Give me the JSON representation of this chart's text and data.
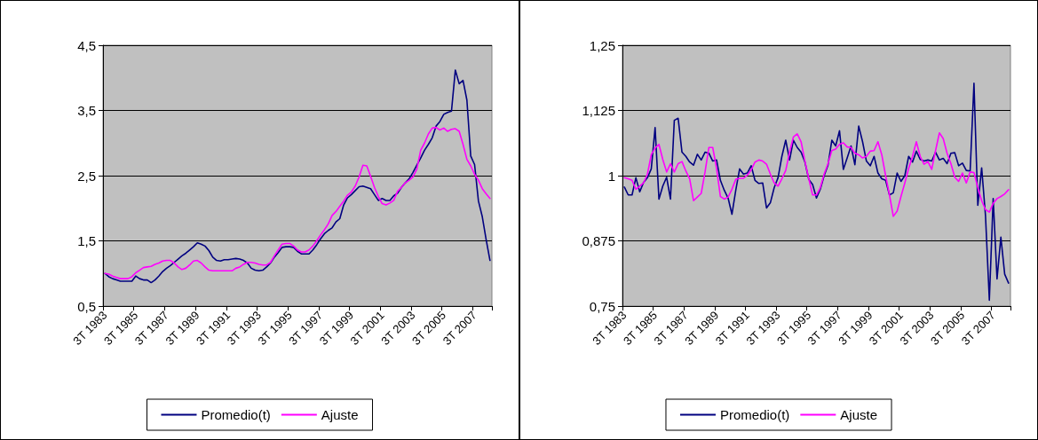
{
  "chart_data": [
    {
      "type": "line",
      "categories": [
        "3T 1983",
        null,
        null,
        null,
        null,
        null,
        null,
        null,
        "3T 1985",
        null,
        null,
        null,
        null,
        null,
        null,
        null,
        "3T 1987",
        null,
        null,
        null,
        null,
        null,
        null,
        null,
        "3T 1989",
        null,
        null,
        null,
        null,
        null,
        null,
        null,
        "3T 1991",
        null,
        null,
        null,
        null,
        null,
        null,
        null,
        "3T 1993",
        null,
        null,
        null,
        null,
        null,
        null,
        null,
        "3T 1995",
        null,
        null,
        null,
        null,
        null,
        null,
        null,
        "3T 1997",
        null,
        null,
        null,
        null,
        null,
        null,
        null,
        "3T 1999",
        null,
        null,
        null,
        null,
        null,
        null,
        null,
        "3T 2001",
        null,
        null,
        null,
        null,
        null,
        null,
        null,
        "3T 2003",
        null,
        null,
        null,
        null,
        null,
        null,
        null,
        "3T 2005",
        null,
        null,
        null,
        null,
        null,
        null,
        null,
        "3T 2007",
        null,
        null,
        null,
        null
      ],
      "series": [
        {
          "name": "Promedio(t)",
          "color": "#000080",
          "values": [
            1.0,
            0.95,
            0.92,
            0.9,
            0.88,
            0.88,
            0.88,
            0.88,
            0.96,
            0.92,
            0.9,
            0.9,
            0.86,
            0.9,
            0.96,
            1.03,
            1.08,
            1.12,
            1.17,
            1.22,
            1.27,
            1.31,
            1.36,
            1.41,
            1.47,
            1.45,
            1.42,
            1.35,
            1.25,
            1.2,
            1.19,
            1.21,
            1.21,
            1.22,
            1.23,
            1.22,
            1.2,
            1.16,
            1.08,
            1.05,
            1.04,
            1.05,
            1.1,
            1.16,
            1.25,
            1.32,
            1.4,
            1.41,
            1.41,
            1.4,
            1.34,
            1.3,
            1.3,
            1.3,
            1.36,
            1.44,
            1.53,
            1.61,
            1.66,
            1.7,
            1.79,
            1.84,
            2.05,
            2.16,
            2.21,
            2.27,
            2.33,
            2.34,
            2.32,
            2.3,
            2.21,
            2.12,
            2.15,
            2.12,
            2.12,
            2.19,
            2.23,
            2.32,
            2.39,
            2.45,
            2.55,
            2.66,
            2.77,
            2.89,
            2.98,
            3.08,
            3.26,
            3.33,
            3.44,
            3.47,
            3.49,
            4.12,
            3.91,
            3.96,
            3.66,
            2.8,
            2.67,
            2.11,
            1.87,
            1.52,
            1.2
          ]
        },
        {
          "name": "Ajuste",
          "color": "#ff00ff",
          "values": [
            1.0,
            0.99,
            0.96,
            0.94,
            0.92,
            0.92,
            0.92,
            0.95,
            1.01,
            1.05,
            1.09,
            1.1,
            1.11,
            1.14,
            1.16,
            1.19,
            1.2,
            1.2,
            1.16,
            1.1,
            1.06,
            1.08,
            1.13,
            1.19,
            1.2,
            1.16,
            1.1,
            1.05,
            1.04,
            1.04,
            1.04,
            1.04,
            1.04,
            1.04,
            1.08,
            1.1,
            1.14,
            1.17,
            1.17,
            1.16,
            1.14,
            1.13,
            1.13,
            1.17,
            1.27,
            1.36,
            1.45,
            1.46,
            1.46,
            1.42,
            1.36,
            1.33,
            1.33,
            1.36,
            1.42,
            1.5,
            1.59,
            1.67,
            1.76,
            1.89,
            1.95,
            2.03,
            2.11,
            2.2,
            2.25,
            2.34,
            2.48,
            2.66,
            2.65,
            2.49,
            2.32,
            2.18,
            2.07,
            2.05,
            2.08,
            2.12,
            2.26,
            2.32,
            2.39,
            2.43,
            2.48,
            2.6,
            2.89,
            3.0,
            3.14,
            3.23,
            3.24,
            3.2,
            3.23,
            3.18,
            3.21,
            3.22,
            3.18,
            2.98,
            2.75,
            2.65,
            2.52,
            2.43,
            2.3,
            2.22,
            2.15
          ]
        }
      ],
      "ylim": [
        0.5,
        4.5
      ],
      "yticks": [
        {
          "value": 0.5,
          "label": "0,5"
        },
        {
          "value": 1.5,
          "label": "1,5"
        },
        {
          "value": 2.5,
          "label": "2,5"
        },
        {
          "value": 3.5,
          "label": "3,5"
        },
        {
          "value": 4.5,
          "label": "4,5"
        }
      ],
      "grid": "y",
      "legend": "bottom",
      "marker": "none"
    },
    {
      "type": "line",
      "categories": [
        "3T 1983",
        null,
        null,
        null,
        null,
        null,
        null,
        null,
        "3T 1985",
        null,
        null,
        null,
        null,
        null,
        null,
        null,
        "3T 1987",
        null,
        null,
        null,
        null,
        null,
        null,
        null,
        "3T 1989",
        null,
        null,
        null,
        null,
        null,
        null,
        null,
        "3T 1991",
        null,
        null,
        null,
        null,
        null,
        null,
        null,
        "3T 1993",
        null,
        null,
        null,
        null,
        null,
        null,
        null,
        "3T 1995",
        null,
        null,
        null,
        null,
        null,
        null,
        null,
        "3T 1997",
        null,
        null,
        null,
        null,
        null,
        null,
        null,
        "3T 1999",
        null,
        null,
        null,
        null,
        null,
        null,
        null,
        "3T 2001",
        null,
        null,
        null,
        null,
        null,
        null,
        null,
        "3T 2003",
        null,
        null,
        null,
        null,
        null,
        null,
        null,
        "3T 2005",
        null,
        null,
        null,
        null,
        null,
        null,
        null,
        "3T 2007",
        null,
        null,
        null,
        null
      ],
      "series": [
        {
          "name": "Promedio(t)",
          "color": "#000080",
          "values": [
            0.978,
            0.963,
            0.963,
            0.996,
            0.969,
            0.987,
            0.996,
            1.013,
            1.092,
            0.955,
            0.98,
            0.997,
            0.955,
            1.106,
            1.11,
            1.045,
            1.037,
            1.026,
            1.02,
            1.041,
            1.03,
            1.045,
            1.043,
            1.028,
            1.03,
            0.991,
            0.972,
            0.957,
            0.926,
            0.972,
            1.013,
            1.003,
            1.005,
            1.019,
            0.991,
            0.985,
            0.986,
            0.938,
            0.948,
            0.977,
            0.996,
            1.037,
            1.068,
            1.03,
            1.068,
            1.054,
            1.045,
            1.026,
            0.993,
            0.983,
            0.957,
            0.974,
            1.0,
            1.02,
            1.068,
            1.057,
            1.086,
            1.012,
            1.034,
            1.057,
            1.021,
            1.095,
            1.065,
            1.028,
            1.019,
            1.037,
            1.005,
            0.994,
            0.991,
            0.963,
            0.967,
            1.005,
            0.989,
            1.0,
            1.037,
            1.026,
            1.047,
            1.031,
            1.028,
            1.03,
            1.028,
            1.045,
            1.03,
            1.033,
            1.023,
            1.043,
            1.044,
            1.019,
            1.024,
            1.01,
            1.009,
            1.177,
            0.943,
            1.015,
            0.923,
            0.761,
            0.956,
            0.802,
            0.882,
            0.811,
            0.794
          ]
        },
        {
          "name": "Ajuste",
          "color": "#ff00ff",
          "values": [
            0.996,
            0.994,
            0.991,
            0.974,
            0.98,
            0.986,
            1.003,
            1.04,
            1.053,
            1.06,
            1.031,
            1.007,
            1.023,
            1.007,
            1.023,
            1.027,
            1.009,
            0.994,
            0.952,
            0.959,
            0.966,
            1.007,
            1.054,
            1.054,
            1.014,
            0.96,
            0.955,
            0.959,
            0.974,
            0.993,
            0.995,
            0.995,
            1.001,
            1.011,
            1.026,
            1.03,
            1.028,
            1.022,
            1.003,
            0.986,
            0.98,
            0.994,
            1.01,
            1.045,
            1.074,
            1.08,
            1.065,
            1.028,
            0.994,
            0.963,
            0.963,
            0.977,
            1.003,
            1.023,
            1.048,
            1.051,
            1.06,
            1.063,
            1.055,
            1.054,
            1.043,
            1.04,
            1.034,
            1.037,
            1.047,
            1.048,
            1.065,
            1.04,
            1.0,
            0.963,
            0.922,
            0.932,
            0.96,
            0.986,
            1.014,
            1.037,
            1.065,
            1.037,
            1.022,
            1.027,
            1.012,
            1.048,
            1.082,
            1.071,
            1.043,
            1.023,
            0.997,
            0.989,
            1.005,
            0.986,
            1.007,
            1.006,
            0.977,
            0.952,
            0.935,
            0.93,
            0.947,
            0.956,
            0.96,
            0.965,
            0.973
          ]
        }
      ],
      "ylim": [
        0.75,
        1.25
      ],
      "yticks": [
        {
          "value": 0.75,
          "label": "0,75"
        },
        {
          "value": 0.875,
          "label": "0,875"
        },
        1,
        {
          "value": 1.125,
          "label": "1,125"
        },
        {
          "value": 1.25,
          "label": "1,25"
        }
      ],
      "grid": "y",
      "legend": "bottom",
      "marker": "none"
    }
  ]
}
